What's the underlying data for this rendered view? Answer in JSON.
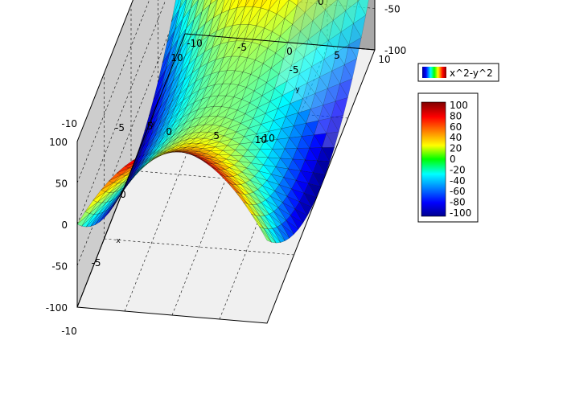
{
  "chart_data": {
    "type": "surface3d",
    "function": "x^2-y^2",
    "x": {
      "label": "x",
      "range": [
        -10,
        10
      ],
      "ticks": [
        "-10",
        "-5",
        "0",
        "5",
        "10"
      ]
    },
    "y": {
      "label": "y",
      "range": [
        -10,
        10
      ],
      "ticks": [
        "-10",
        "-5",
        "0",
        "5",
        "10"
      ]
    },
    "z": {
      "range": [
        -100,
        100
      ],
      "ticks": [
        "-100",
        "-50",
        "0",
        "50",
        "100"
      ]
    },
    "grid": true,
    "legend": {
      "label": "x^2-y^2",
      "placement": "top-right"
    },
    "colorbar": {
      "min": -100,
      "max": 100,
      "ticks": [
        "100",
        "80",
        "60",
        "40",
        "20",
        "0",
        "-20",
        "-40",
        "-60",
        "-80",
        "-100"
      ],
      "colormap": "jet"
    },
    "sample_values": [
      {
        "x": -10,
        "y": -10,
        "z": 0
      },
      {
        "x": 10,
        "y": -10,
        "z": 0
      },
      {
        "x": -10,
        "y": 10,
        "z": 0
      },
      {
        "x": 10,
        "y": 10,
        "z": 0
      },
      {
        "x": 0,
        "y": 10,
        "z": -100
      },
      {
        "x": 0,
        "y": -10,
        "z": -100
      },
      {
        "x": 10,
        "y": 0,
        "z": 100
      },
      {
        "x": -10,
        "y": 0,
        "z": 100
      },
      {
        "x": 0,
        "y": 0,
        "z": 0
      }
    ],
    "colors": {
      "wall": "#a8a8a8",
      "side_wall": "#cdcdcd",
      "floor": "#f0f0f0",
      "mesh": "#000000"
    }
  }
}
